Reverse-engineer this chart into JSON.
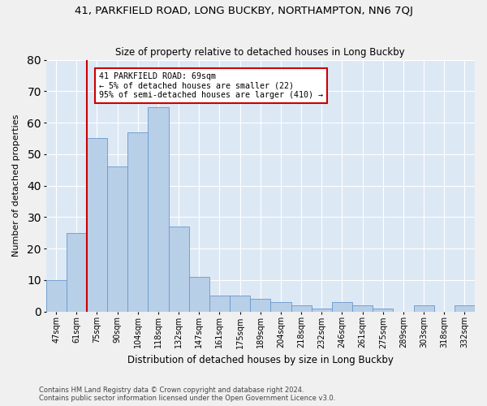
{
  "title": "41, PARKFIELD ROAD, LONG BUCKBY, NORTHAMPTON, NN6 7QJ",
  "subtitle": "Size of property relative to detached houses in Long Buckby",
  "xlabel": "Distribution of detached houses by size in Long Buckby",
  "ylabel": "Number of detached properties",
  "categories": [
    "47sqm",
    "61sqm",
    "75sqm",
    "90sqm",
    "104sqm",
    "118sqm",
    "132sqm",
    "147sqm",
    "161sqm",
    "175sqm",
    "189sqm",
    "204sqm",
    "218sqm",
    "232sqm",
    "246sqm",
    "261sqm",
    "275sqm",
    "289sqm",
    "303sqm",
    "318sqm",
    "332sqm"
  ],
  "values": [
    10,
    25,
    55,
    46,
    57,
    65,
    27,
    11,
    5,
    5,
    4,
    3,
    2,
    1,
    3,
    2,
    1,
    0,
    2,
    0,
    2
  ],
  "bar_color": "#b8cfe8",
  "bar_edge_color": "#6699cc",
  "annotation_text_line1": "41 PARKFIELD ROAD: 69sqm",
  "annotation_text_line2": "← 5% of detached houses are smaller (22)",
  "annotation_text_line3": "95% of semi-detached houses are larger (410) →",
  "annotation_box_color": "#ffffff",
  "annotation_border_color": "#cc0000",
  "ylim": [
    0,
    80
  ],
  "yticks": [
    0,
    10,
    20,
    30,
    40,
    50,
    60,
    70,
    80
  ],
  "vline_color": "#cc0000",
  "background_color": "#dde8f5",
  "grid_color": "#ffffff",
  "fig_background": "#f0f0f0",
  "footer_line1": "Contains HM Land Registry data © Crown copyright and database right 2024.",
  "footer_line2": "Contains public sector information licensed under the Open Government Licence v3.0."
}
